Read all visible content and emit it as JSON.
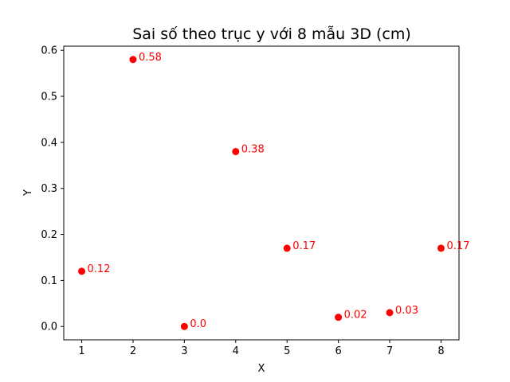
{
  "chart_data": {
    "type": "scatter",
    "title": "Sai số theo trục y với 8 mẫu 3D (cm)",
    "xlabel": "X",
    "ylabel": "Y",
    "x": [
      1,
      2,
      3,
      4,
      5,
      6,
      7,
      8
    ],
    "y": [
      0.12,
      0.58,
      0.0,
      0.38,
      0.17,
      0.02,
      0.03,
      0.17
    ],
    "data_labels": [
      "0.12",
      "0.58",
      "0.0",
      "0.38",
      "0.17",
      "0.02",
      "0.03",
      "0.17"
    ],
    "xlim": [
      0.65,
      8.35
    ],
    "ylim": [
      -0.029,
      0.609
    ],
    "xticks": [
      1,
      2,
      3,
      4,
      5,
      6,
      7,
      8
    ],
    "xtick_labels": [
      "1",
      "2",
      "3",
      "4",
      "5",
      "6",
      "7",
      "8"
    ],
    "yticks": [
      0.0,
      0.1,
      0.2,
      0.3,
      0.4,
      0.5,
      0.6
    ],
    "ytick_labels": [
      "0.0",
      "0.1",
      "0.2",
      "0.3",
      "0.4",
      "0.5",
      "0.6"
    ],
    "grid": false,
    "marker_color": "#ff0000",
    "label_color": "#ff0000"
  }
}
